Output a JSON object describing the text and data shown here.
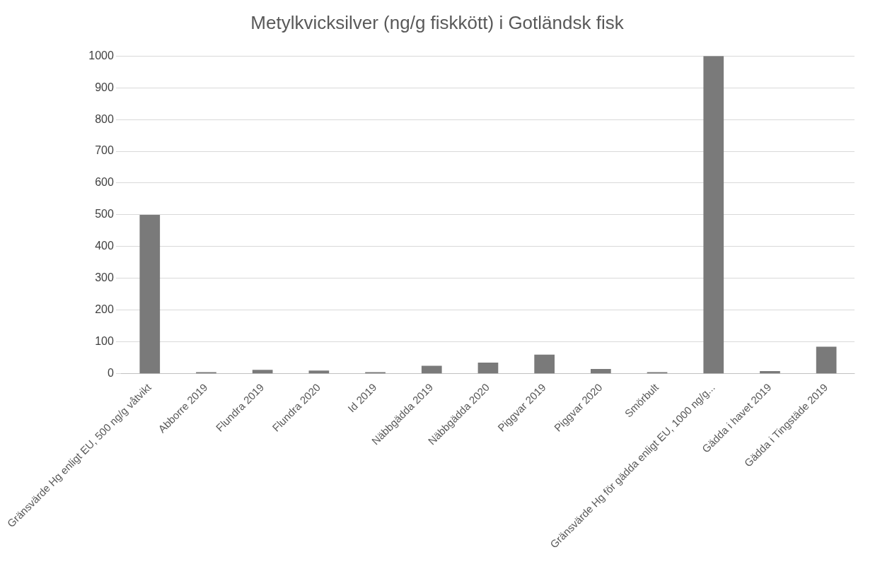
{
  "chart_data": {
    "type": "bar",
    "title": "Metylkvicksilver (ng/g fiskkött) i Gotländsk fisk",
    "categories": [
      "Gränsvärde Hg enligt EU, 500 ng/g våtvikt",
      "Abborre 2019",
      "Flundra 2019",
      "Flundra 2020",
      "Id 2019",
      "Näbbgädda 2019",
      "Näbbgädda 2020",
      "Piggvar 2019",
      "Piggvar 2020",
      "Smörbult",
      "Gränsvärde Hg för gädda enligt EU, 1000 ng/g...",
      "Gädda i havet 2019",
      "Gädda i Tingstäde 2019"
    ],
    "values": [
      500,
      5,
      12,
      10,
      5,
      25,
      35,
      60,
      15,
      5,
      1000,
      8,
      85
    ],
    "color": "#7a7a7a",
    "ylim": [
      0,
      1000
    ],
    "yticks": [
      0,
      100,
      200,
      300,
      400,
      500,
      600,
      700,
      800,
      900,
      1000
    ],
    "grid": "y",
    "legend": false
  }
}
